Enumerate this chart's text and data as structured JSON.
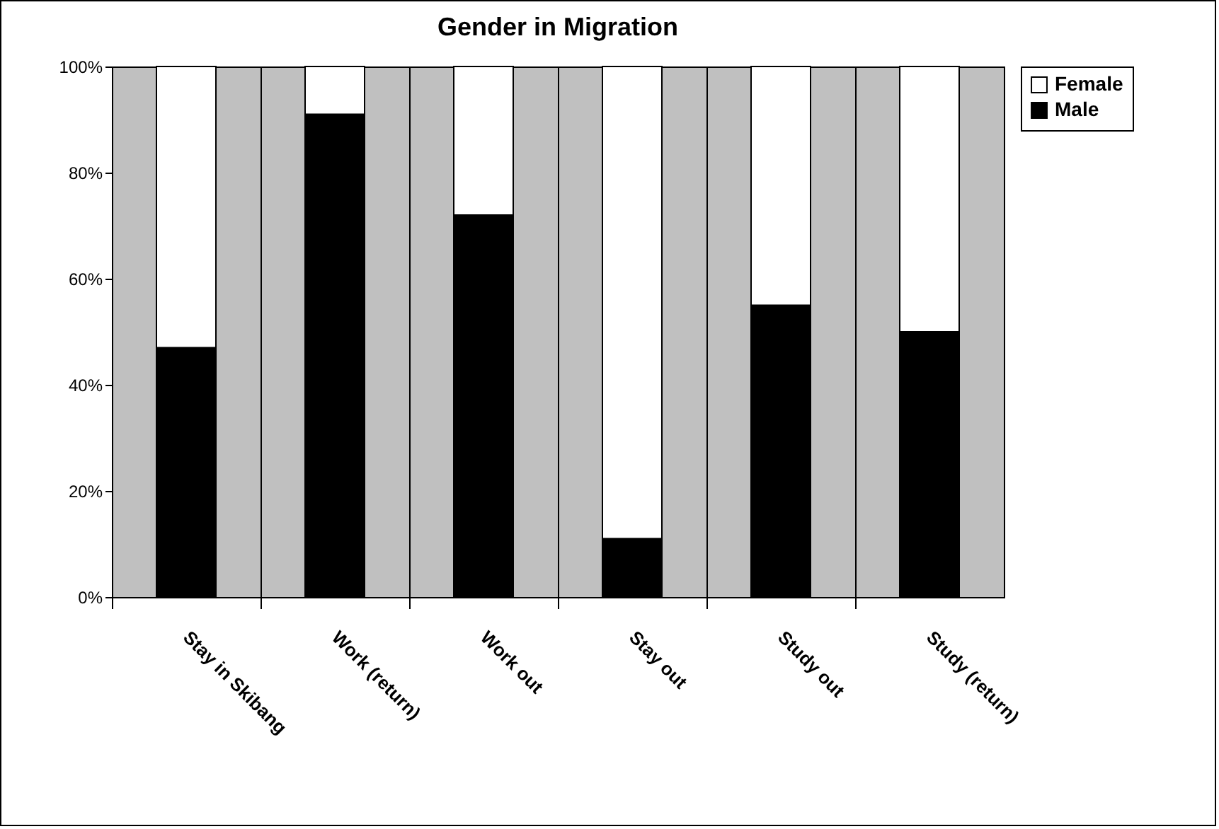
{
  "chart_data": {
    "type": "bar",
    "title": "Gender in Migration",
    "categories": [
      "Stay in Skibang",
      "Work (return)",
      "Work out",
      "Stay out",
      "Study out",
      "Study (return)"
    ],
    "stacked": true,
    "series": [
      {
        "name": "Male",
        "color": "#000000",
        "values": [
          47,
          91,
          72,
          11,
          55,
          50
        ]
      },
      {
        "name": "Female",
        "color": "#ffffff",
        "values": [
          53,
          9,
          28,
          89,
          45,
          50
        ]
      }
    ],
    "ylim": [
      0,
      100
    ],
    "yticks": [
      {
        "value": 0,
        "label": "0%"
      },
      {
        "value": 20,
        "label": "20%"
      },
      {
        "value": 40,
        "label": "40%"
      },
      {
        "value": 60,
        "label": "60%"
      },
      {
        "value": 80,
        "label": "80%"
      },
      {
        "value": 100,
        "label": "100%"
      }
    ],
    "grid": "x",
    "legend": "right"
  }
}
